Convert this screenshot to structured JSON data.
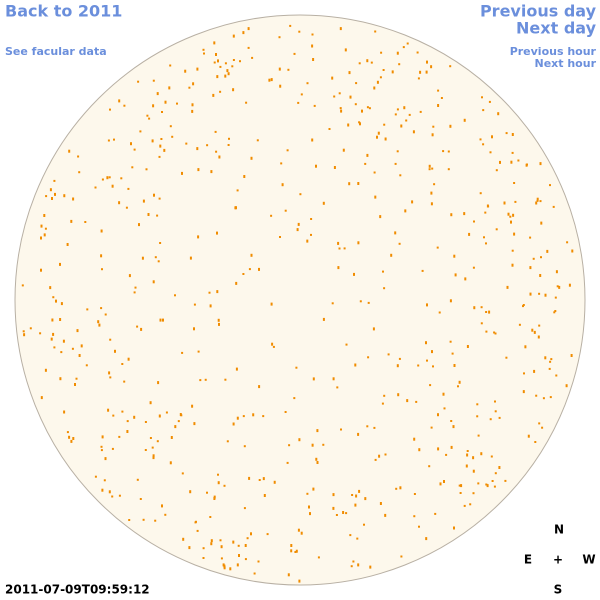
{
  "links": {
    "back": "Back to 2011",
    "facular": "See facular data"
  },
  "nav": {
    "previous_day": "Previous day",
    "next_day": "Next day",
    "previous_hour": "Previous hour",
    "next_hour": "Next hour"
  },
  "compass": {
    "n": "N",
    "e": "E",
    "center": "+",
    "w": "W",
    "s": "S"
  },
  "timestamp": "2011-07-09T09:59:12"
}
